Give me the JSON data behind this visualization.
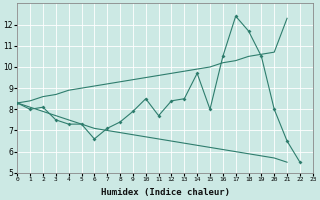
{
  "xlabel": "Humidex (Indice chaleur)",
  "background_color": "#cce9e4",
  "grid_color": "#b0d8d2",
  "line_color": "#2e7d6d",
  "x_values": [
    0,
    1,
    2,
    3,
    4,
    5,
    6,
    7,
    8,
    9,
    10,
    11,
    12,
    13,
    14,
    15,
    16,
    17,
    18,
    19,
    20,
    21,
    22,
    23
  ],
  "series_main": [
    8.3,
    8.0,
    8.1,
    7.5,
    7.3,
    7.3,
    6.6,
    7.1,
    7.4,
    7.9,
    8.5,
    7.7,
    8.4,
    8.5,
    9.7,
    8.0,
    10.5,
    12.4,
    11.7,
    10.5,
    8.0,
    6.5,
    5.5,
    null
  ],
  "series_upper": [
    8.3,
    8.4,
    8.6,
    8.7,
    8.9,
    9.0,
    9.1,
    9.2,
    9.3,
    9.4,
    9.5,
    9.6,
    9.7,
    9.8,
    9.9,
    10.0,
    10.2,
    10.3,
    10.5,
    10.6,
    10.7,
    12.3,
    null,
    null
  ],
  "series_lower": [
    8.3,
    8.1,
    7.9,
    7.7,
    7.5,
    7.3,
    7.1,
    7.0,
    6.9,
    6.8,
    6.7,
    6.6,
    6.5,
    6.4,
    6.3,
    6.2,
    6.1,
    6.0,
    5.9,
    5.8,
    5.7,
    5.5,
    null,
    null
  ],
  "xlim": [
    0,
    23
  ],
  "ylim": [
    5,
    13
  ],
  "yticks": [
    5,
    6,
    7,
    8,
    9,
    10,
    11,
    12
  ],
  "xtick_labels": [
    "0",
    "1",
    "2",
    "3",
    "4",
    "5",
    "6",
    "7",
    "8",
    "9",
    "10",
    "11",
    "12",
    "13",
    "14",
    "15",
    "16",
    "17",
    "18",
    "19",
    "20",
    "21",
    "22",
    "23"
  ],
  "figsize": [
    3.2,
    2.0
  ],
  "dpi": 100
}
